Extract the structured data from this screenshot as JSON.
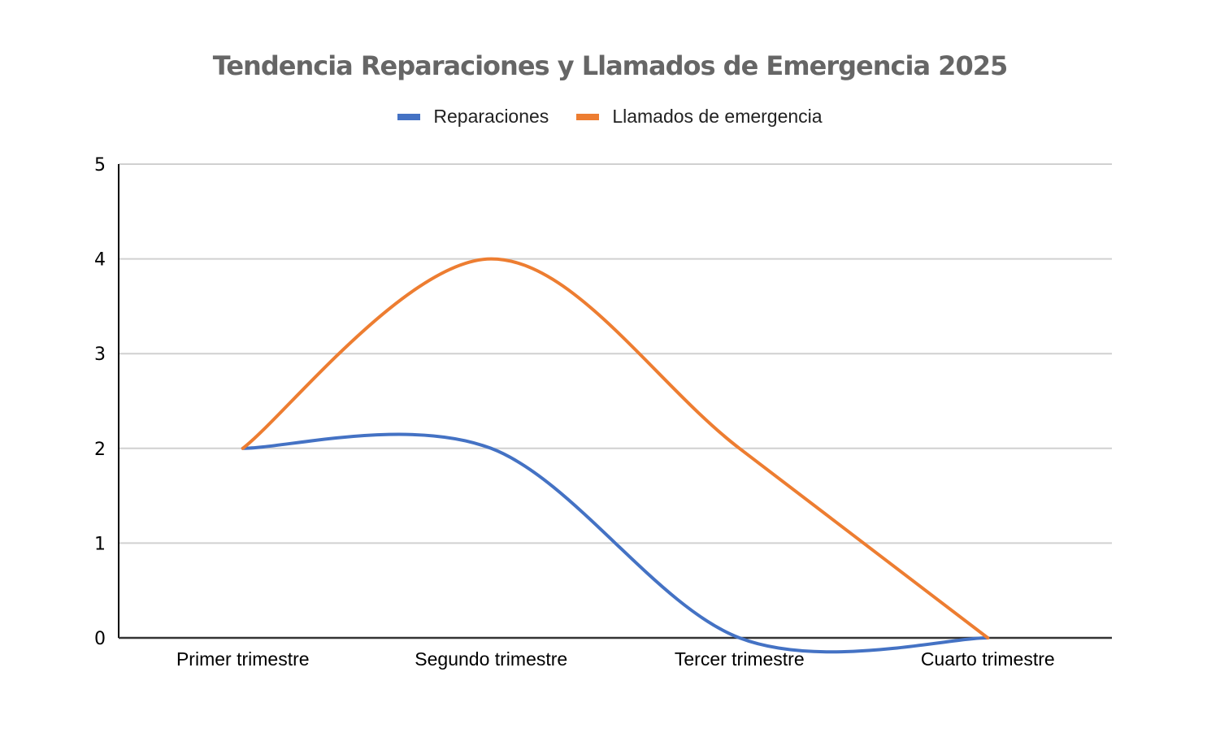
{
  "chart_data": {
    "type": "line",
    "title": "Tendencia Reparaciones y Llamados de Emergencia 2025",
    "categories": [
      "Primer trimestre",
      "Segundo trimestre",
      "Tercer trimestre",
      "Cuarto trimestre"
    ],
    "series": [
      {
        "name": "Reparaciones",
        "color": "#4472C4",
        "values": [
          2,
          2,
          0,
          0
        ]
      },
      {
        "name": "Llamados de emergencia",
        "color": "#ED7D31",
        "values": [
          2,
          4,
          2,
          0
        ]
      }
    ],
    "xlabel": "",
    "ylabel": "",
    "ylim": [
      0,
      5
    ],
    "yticks": [
      "0",
      "1",
      "2",
      "3",
      "4",
      "5"
    ],
    "grid": true,
    "smooth": true,
    "legend_position": "top"
  }
}
